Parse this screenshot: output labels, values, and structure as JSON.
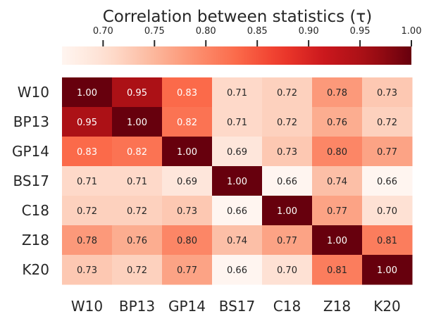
{
  "chart_data": {
    "type": "heatmap",
    "title": "Correlation between statistics (τ)",
    "xlabel": "",
    "ylabel": "",
    "rows": [
      "W10",
      "BP13",
      "GP14",
      "BS17",
      "C18",
      "Z18",
      "K20"
    ],
    "columns": [
      "W10",
      "BP13",
      "GP14",
      "BS17",
      "C18",
      "Z18",
      "K20"
    ],
    "values": [
      [
        1.0,
        0.95,
        0.83,
        0.71,
        0.72,
        0.78,
        0.73
      ],
      [
        0.95,
        1.0,
        0.82,
        0.71,
        0.72,
        0.76,
        0.72
      ],
      [
        0.83,
        0.82,
        1.0,
        0.69,
        0.73,
        0.8,
        0.77
      ],
      [
        0.71,
        0.71,
        0.69,
        1.0,
        0.66,
        0.74,
        0.66
      ],
      [
        0.72,
        0.72,
        0.73,
        0.66,
        1.0,
        0.77,
        0.7
      ],
      [
        0.78,
        0.76,
        0.8,
        0.74,
        0.77,
        1.0,
        0.81
      ],
      [
        0.73,
        0.72,
        0.77,
        0.66,
        0.7,
        0.81,
        1.0
      ]
    ],
    "value_format": "0.00",
    "colormap": "Reds",
    "vmin": 0.66,
    "vmax": 1.0,
    "colorbar": {
      "orientation": "horizontal",
      "location": "top",
      "ticks": [
        0.7,
        0.75,
        0.8,
        0.85,
        0.9,
        0.95,
        1.0
      ],
      "tick_labels": [
        "0.70",
        "0.75",
        "0.80",
        "0.85",
        "0.90",
        "0.95",
        "1.00"
      ]
    },
    "colors": {
      "low": "#fff5f0",
      "high": "#67000d",
      "text_dark": "#262626",
      "text_light": "#ffffff"
    },
    "grid": false
  }
}
